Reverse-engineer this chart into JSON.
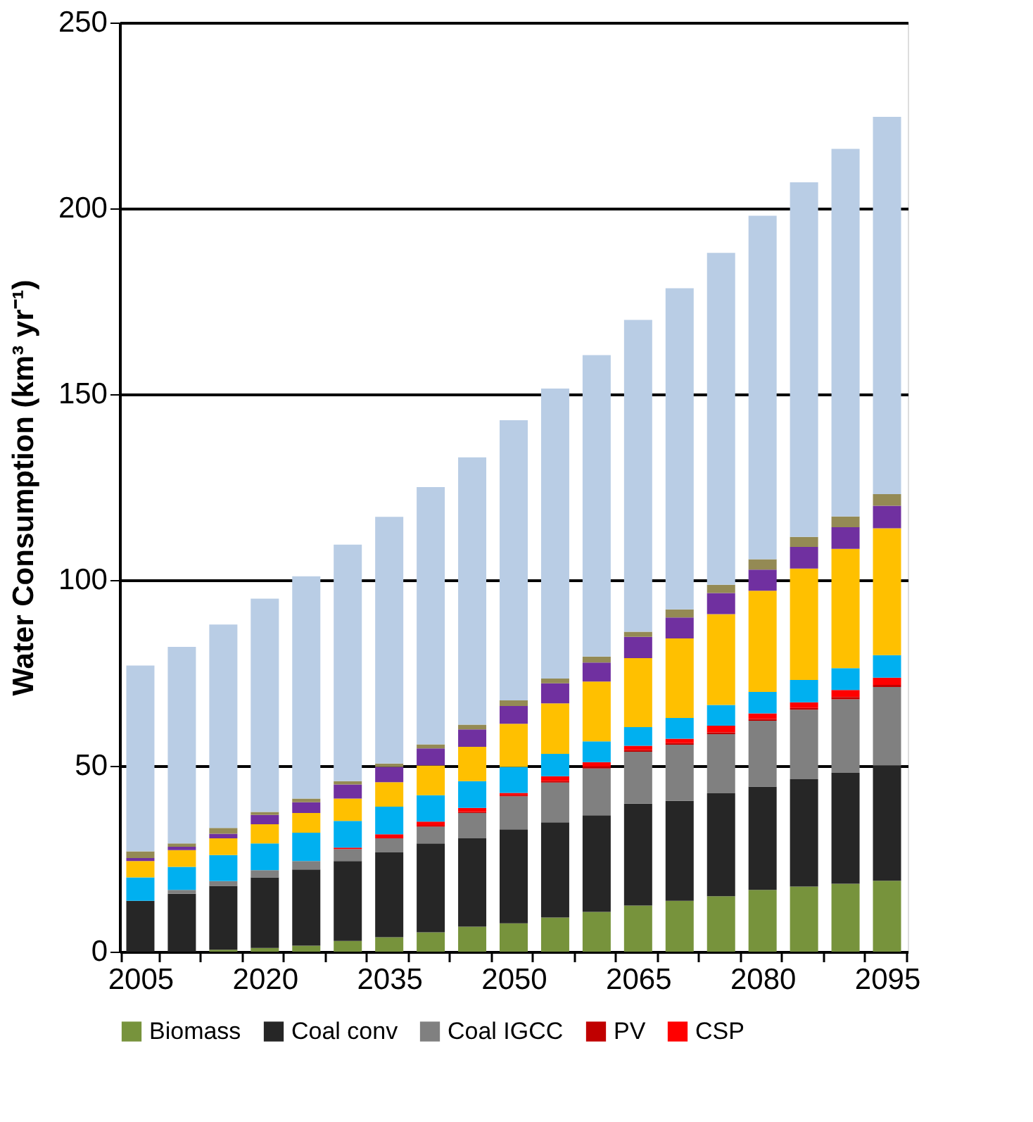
{
  "chart_data": {
    "type": "bar",
    "stacked": true,
    "ylabel": "Water Consumption (km³ yr⁻¹)",
    "categories": [
      "2005",
      null,
      null,
      "2020",
      null,
      null,
      "2035",
      null,
      null,
      "2050",
      null,
      null,
      "2065",
      null,
      null,
      "2080",
      null,
      null,
      "2095"
    ],
    "ylim": [
      0,
      250
    ],
    "yticks": [
      0,
      50,
      100,
      150,
      200,
      250
    ],
    "grid": "y",
    "legend": "bottom",
    "series": [
      {
        "name": "Biomass",
        "color": "#77933c",
        "values": [
          0,
          0,
          0.5,
          1.0,
          1.6,
          2.9,
          3.9,
          5.2,
          6.7,
          7.6,
          9.2,
          10.7,
          12.4,
          13.7,
          14.9,
          16.6,
          17.5,
          18.3,
          19.1
        ]
      },
      {
        "name": "Coal conv",
        "color": "#262626",
        "values": [
          13.7,
          15.6,
          17.2,
          19.0,
          20.5,
          21.5,
          22.8,
          23.9,
          23.8,
          25.3,
          25.6,
          26.0,
          27.4,
          26.9,
          27.7,
          27.8,
          28.9,
          29.8,
          31.0
        ]
      },
      {
        "name": "Coal IGCC",
        "color": "#808080",
        "values": [
          0,
          1.0,
          1.3,
          1.9,
          2.3,
          3.2,
          3.8,
          4.5,
          6.8,
          8.9,
          10.7,
          12.6,
          14.0,
          15.1,
          15.9,
          17.7,
          18.7,
          19.8,
          21.1
        ]
      },
      {
        "name": "PV",
        "color": "#c00000",
        "values": [
          0,
          0,
          0,
          0,
          0,
          0,
          0,
          0.3,
          0.3,
          0.3,
          0.4,
          0.4,
          0.4,
          0.4,
          0.5,
          0.5,
          0.5,
          0.6,
          0.6
        ]
      },
      {
        "name": "CSP",
        "color": "#ff0000",
        "values": [
          0,
          0,
          0,
          0,
          0,
          0.4,
          1.1,
          1.1,
          1.1,
          0.6,
          1.3,
          1.3,
          1.2,
          1.2,
          1.8,
          1.5,
          1.5,
          1.9,
          1.9
        ]
      },
      {
        "color": "#00b0f0",
        "values": [
          6.3,
          6.2,
          7.0,
          7.2,
          7.6,
          7.2,
          7.4,
          7.1,
          7.2,
          7.0,
          6.0,
          5.6,
          5.0,
          5.6,
          5.6,
          5.8,
          6.0,
          5.9,
          6.1
        ]
      },
      {
        "color": "#ffc000",
        "values": [
          4.4,
          4.5,
          4.5,
          5.2,
          5.3,
          6.0,
          6.6,
          8.0,
          9.2,
          11.6,
          13.6,
          16.1,
          18.6,
          21.4,
          24.4,
          27.2,
          30.0,
          32.1,
          34.1
        ]
      },
      {
        "color": "#7030a0",
        "values": [
          0.8,
          0.9,
          1.2,
          2.5,
          2.9,
          3.8,
          4.1,
          4.6,
          4.7,
          4.8,
          5.4,
          5.1,
          5.7,
          5.6,
          5.7,
          5.7,
          5.8,
          5.8,
          6.1
        ]
      },
      {
        "color": "#948a54",
        "values": [
          1.8,
          0.9,
          1.6,
          0.8,
          1.0,
          0.9,
          0.9,
          1.1,
          1.3,
          1.5,
          1.3,
          1.6,
          1.4,
          2.2,
          2.2,
          2.8,
          2.7,
          2.9,
          3.1
        ]
      },
      {
        "color": "#b9cde5",
        "values": [
          50.0,
          52.9,
          54.7,
          57.4,
          59.8,
          63.6,
          66.4,
          69.2,
          71.9,
          75.4,
          78.0,
          81.1,
          83.9,
          86.4,
          89.3,
          92.4,
          95.4,
          98.9,
          101.5
        ]
      }
    ]
  }
}
